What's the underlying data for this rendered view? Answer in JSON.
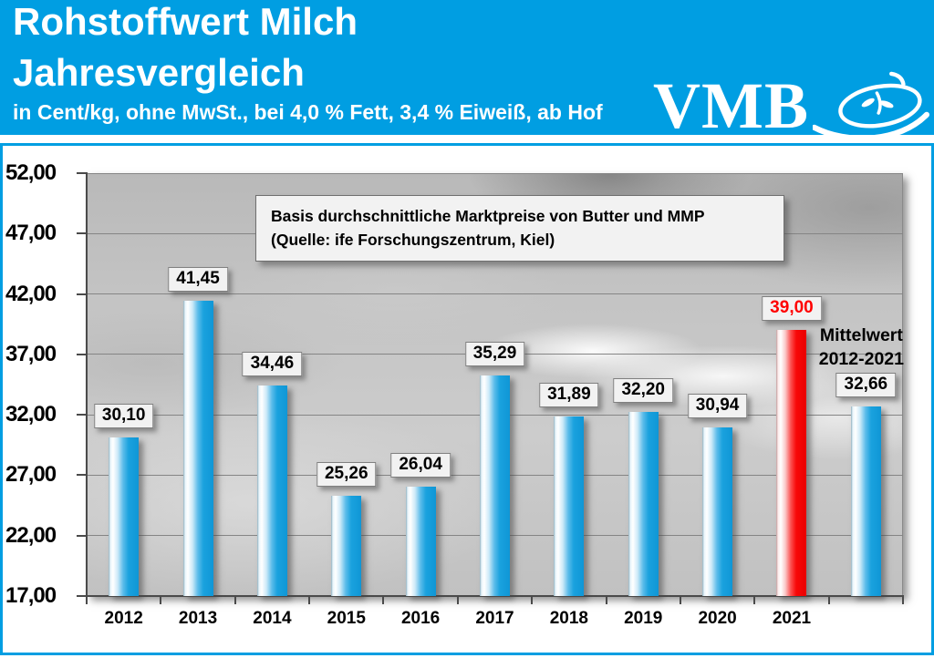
{
  "header": {
    "title_line1": "Rohstoffwert Milch",
    "title_line2": "Jahresvergleich",
    "subtitle": "in Cent/kg, ohne MwSt., bei 4,0 % Fett, 3,4 % Eiweiß, ab Hof",
    "logo_text": "VMB",
    "accent_color": "#009EE2"
  },
  "annotation": {
    "line1": "Basis durchschnittliche Marktpreise von Butter und MMP",
    "line2": "(Quelle: ife Forschungszentrum, Kiel)"
  },
  "mean_label": {
    "line1": "Mittelwert",
    "line2": "2012-2021"
  },
  "chart_data": {
    "type": "bar",
    "title": "Rohstoffwert Milch Jahresvergleich",
    "unit": "Cent/kg",
    "categories": [
      "2012",
      "2013",
      "2014",
      "2015",
      "2016",
      "2017",
      "2018",
      "2019",
      "2020",
      "2021",
      "Mittelwert 2012-2021"
    ],
    "values": [
      30.1,
      41.45,
      34.46,
      25.26,
      26.04,
      35.29,
      31.89,
      32.2,
      30.94,
      39.0,
      32.66
    ],
    "value_labels": [
      "30,10",
      "41,45",
      "34,46",
      "25,26",
      "26,04",
      "35,29",
      "31,89",
      "32,20",
      "30,94",
      "39,00",
      "32,66"
    ],
    "x_axis_labels": [
      "2012",
      "2013",
      "2014",
      "2015",
      "2016",
      "2017",
      "2018",
      "2019",
      "2020",
      "2021",
      ""
    ],
    "y_ticks": [
      52,
      47,
      42,
      37,
      32,
      27,
      22,
      17
    ],
    "y_tick_labels": [
      "52,00",
      "47,00",
      "42,00",
      "37,00",
      "32,00",
      "27,00",
      "22,00",
      "17,00"
    ],
    "ylim": [
      17,
      52
    ],
    "grid": true,
    "legend": "none",
    "highlight_index": 9,
    "colors": {
      "bar": "#14A0DC",
      "highlight_bar": "#FF0000",
      "highlight_label_text": "#FF0000",
      "gridline": "#858585",
      "label_box_bg": "#F2F2F2",
      "header_background": "#009EE2"
    }
  }
}
